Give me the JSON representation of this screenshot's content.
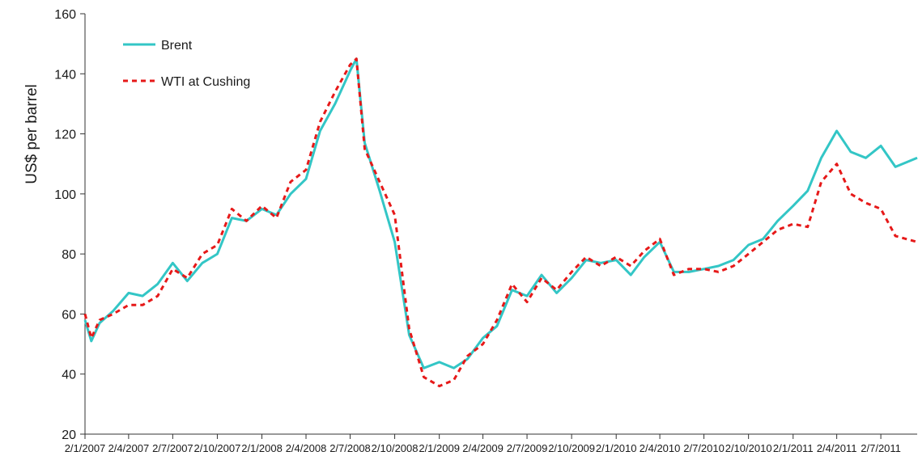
{
  "chart_data": {
    "type": "line",
    "ylabel": "US$ per barrel",
    "xlabel": "",
    "ylim": [
      20,
      160
    ],
    "yticks": [
      20,
      40,
      60,
      80,
      100,
      120,
      140,
      160
    ],
    "xlim": [
      "2007-01-02",
      "2011-09-15"
    ],
    "xtick_labels": [
      "2/1/2007",
      "2/4/2007",
      "2/7/2007",
      "2/10/2007",
      "2/1/2008",
      "2/4/2008",
      "2/7/2008",
      "2/10/2008",
      "2/1/2009",
      "2/4/2009",
      "2/7/2009",
      "2/10/2009",
      "2/1/2010",
      "2/4/2010",
      "2/7/2010",
      "2/10/2010",
      "2/1/2011",
      "2/4/2011",
      "2/7/2011"
    ],
    "xtick_dates": [
      "2007-01-02",
      "2007-04-02",
      "2007-07-02",
      "2007-10-02",
      "2008-01-02",
      "2008-04-02",
      "2008-07-02",
      "2008-10-02",
      "2009-01-02",
      "2009-04-02",
      "2009-07-02",
      "2009-10-02",
      "2010-01-02",
      "2010-04-02",
      "2010-07-02",
      "2010-10-02",
      "2011-01-02",
      "2011-04-02",
      "2011-07-02"
    ],
    "grid": false,
    "legend_position": "top-left",
    "series": [
      {
        "name": "Brent",
        "color": "#33c6c6",
        "style": "solid",
        "x": [
          "2007-01-02",
          "2007-01-15",
          "2007-02-01",
          "2007-03-01",
          "2007-04-02",
          "2007-05-01",
          "2007-06-01",
          "2007-07-02",
          "2007-08-01",
          "2007-09-01",
          "2007-10-02",
          "2007-11-01",
          "2007-12-01",
          "2008-01-02",
          "2008-02-01",
          "2008-03-01",
          "2008-04-02",
          "2008-05-01",
          "2008-06-01",
          "2008-07-02",
          "2008-07-15",
          "2008-08-01",
          "2008-09-01",
          "2008-10-02",
          "2008-11-01",
          "2008-12-01",
          "2009-01-02",
          "2009-02-01",
          "2009-03-01",
          "2009-04-02",
          "2009-05-01",
          "2009-06-01",
          "2009-07-02",
          "2009-08-01",
          "2009-09-01",
          "2009-10-02",
          "2009-11-01",
          "2009-12-01",
          "2010-01-02",
          "2010-02-01",
          "2010-03-01",
          "2010-04-02",
          "2010-05-01",
          "2010-06-01",
          "2010-07-02",
          "2010-08-01",
          "2010-09-01",
          "2010-10-02",
          "2010-11-01",
          "2010-12-01",
          "2011-01-02",
          "2011-02-01",
          "2011-03-01",
          "2011-04-02",
          "2011-05-01",
          "2011-06-01",
          "2011-07-02",
          "2011-08-01",
          "2011-09-15"
        ],
        "values": [
          58,
          51,
          57,
          61,
          67,
          66,
          70,
          77,
          71,
          77,
          80,
          92,
          91,
          95,
          93,
          100,
          105,
          121,
          130,
          141,
          145,
          117,
          101,
          84,
          53,
          42,
          44,
          42,
          45,
          52,
          56,
          68,
          66,
          73,
          67,
          72,
          78,
          77,
          78,
          73,
          79,
          84,
          74,
          74,
          75,
          76,
          78,
          83,
          85,
          91,
          96,
          101,
          112,
          121,
          114,
          112,
          116,
          109,
          112
        ]
      },
      {
        "name": "WTI at Cushing",
        "color": "#e61919",
        "style": "dashed",
        "x": [
          "2007-01-02",
          "2007-01-15",
          "2007-02-01",
          "2007-03-01",
          "2007-04-02",
          "2007-05-01",
          "2007-06-01",
          "2007-07-02",
          "2007-08-01",
          "2007-09-01",
          "2007-10-02",
          "2007-11-01",
          "2007-12-01",
          "2008-01-02",
          "2008-02-01",
          "2008-03-01",
          "2008-04-02",
          "2008-05-01",
          "2008-06-01",
          "2008-07-02",
          "2008-07-15",
          "2008-08-01",
          "2008-09-01",
          "2008-10-02",
          "2008-11-01",
          "2008-12-01",
          "2009-01-02",
          "2009-02-01",
          "2009-03-01",
          "2009-04-02",
          "2009-05-01",
          "2009-06-01",
          "2009-07-02",
          "2009-08-01",
          "2009-09-01",
          "2009-10-02",
          "2009-11-01",
          "2009-12-01",
          "2010-01-02",
          "2010-02-01",
          "2010-03-01",
          "2010-04-02",
          "2010-05-01",
          "2010-06-01",
          "2010-07-02",
          "2010-08-01",
          "2010-09-01",
          "2010-10-02",
          "2010-11-01",
          "2010-12-01",
          "2011-01-02",
          "2011-02-01",
          "2011-03-01",
          "2011-04-02",
          "2011-05-01",
          "2011-06-01",
          "2011-07-02",
          "2011-08-01",
          "2011-09-15"
        ],
        "values": [
          60,
          52,
          58,
          60,
          63,
          63,
          66,
          75,
          72,
          80,
          83,
          95,
          91,
          96,
          92,
          104,
          108,
          124,
          134,
          143,
          145,
          115,
          104,
          93,
          55,
          39,
          36,
          38,
          46,
          50,
          58,
          70,
          64,
          72,
          68,
          74,
          79,
          76,
          79,
          76,
          81,
          85,
          73,
          75,
          75,
          74,
          76,
          80,
          84,
          88,
          90,
          89,
          104,
          110,
          100,
          97,
          95,
          86,
          84
        ]
      }
    ]
  }
}
